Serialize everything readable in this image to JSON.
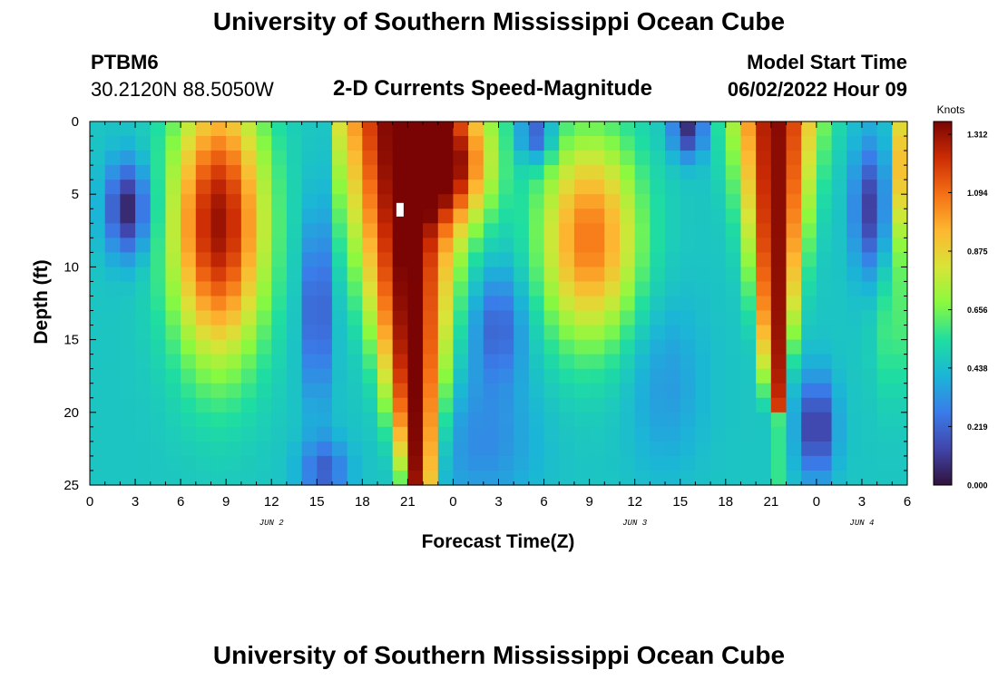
{
  "header": {
    "title": "University of Southern Mississippi Ocean Cube",
    "station": "PTBM6",
    "coords": "30.2120N  88.5050W",
    "subtitle": "2-D Currents Speed-Magnitude",
    "model_start_label": "Model Start Time",
    "model_start_value": "06/02/2022 Hour 09",
    "footer_title": "University of Southern Mississippi Ocean Cube"
  },
  "chart_data": {
    "type": "heatmap",
    "title": "2-D Currents Speed-Magnitude",
    "xlabel": "Forecast Time(Z)",
    "ylabel": "Depth (ft)",
    "x_range_hours": [
      0,
      54
    ],
    "x_ticks": [
      {
        "h": 0,
        "label": "0"
      },
      {
        "h": 3,
        "label": "3"
      },
      {
        "h": 6,
        "label": "6"
      },
      {
        "h": 9,
        "label": "9"
      },
      {
        "h": 12,
        "label": "12"
      },
      {
        "h": 15,
        "label": "15"
      },
      {
        "h": 18,
        "label": "18"
      },
      {
        "h": 21,
        "label": "21"
      },
      {
        "h": 24,
        "label": "0"
      },
      {
        "h": 27,
        "label": "3"
      },
      {
        "h": 30,
        "label": "6"
      },
      {
        "h": 33,
        "label": "9"
      },
      {
        "h": 36,
        "label": "12"
      },
      {
        "h": 39,
        "label": "15"
      },
      {
        "h": 42,
        "label": "18"
      },
      {
        "h": 45,
        "label": "21"
      },
      {
        "h": 48,
        "label": "0"
      },
      {
        "h": 51,
        "label": "3"
      },
      {
        "h": 54,
        "label": "6"
      }
    ],
    "date_labels": [
      {
        "h": 12,
        "label": "JUN 2"
      },
      {
        "h": 36,
        "label": "JUN 3"
      },
      {
        "h": 51,
        "label": "JUN 4"
      }
    ],
    "y_range": [
      0,
      25
    ],
    "y_ticks": [
      0,
      5,
      10,
      15,
      20,
      25
    ],
    "y_tick_labels": [
      "0",
      "5",
      "10",
      "15",
      "20",
      "25"
    ],
    "colorbar": {
      "unit": "Knots",
      "range": [
        0,
        1.36
      ],
      "ticks": [
        0.0,
        0.219,
        0.438,
        0.656,
        0.875,
        1.094,
        1.312
      ],
      "tick_labels": [
        "0.000",
        "0.219",
        "0.438",
        "0.656",
        "0.875",
        "1.094",
        "1.312"
      ]
    },
    "grid_resolution": {
      "nx": 54,
      "ny": 25
    },
    "features": [
      {
        "h": 2.5,
        "depth": 6,
        "speed": 0.05,
        "note": "low"
      },
      {
        "h": 8.5,
        "depth": 6,
        "speed": 1.15,
        "note": "high"
      },
      {
        "h": 15,
        "depth": 13,
        "speed": 0.15,
        "note": "low"
      },
      {
        "h": 20.5,
        "depth": 8,
        "speed": 1.36,
        "note": "high"
      },
      {
        "h": 27,
        "depth": 14,
        "speed": 0.2,
        "note": "low"
      },
      {
        "h": 33,
        "depth": 8,
        "speed": 1.05,
        "note": "high"
      },
      {
        "h": 45.5,
        "depth": 5,
        "speed": 1.3,
        "note": "high"
      },
      {
        "h": 48,
        "depth": 21,
        "speed": 0.08,
        "note": "low"
      },
      {
        "h": 51.5,
        "depth": 6,
        "speed": 0.12,
        "note": "low"
      }
    ]
  }
}
